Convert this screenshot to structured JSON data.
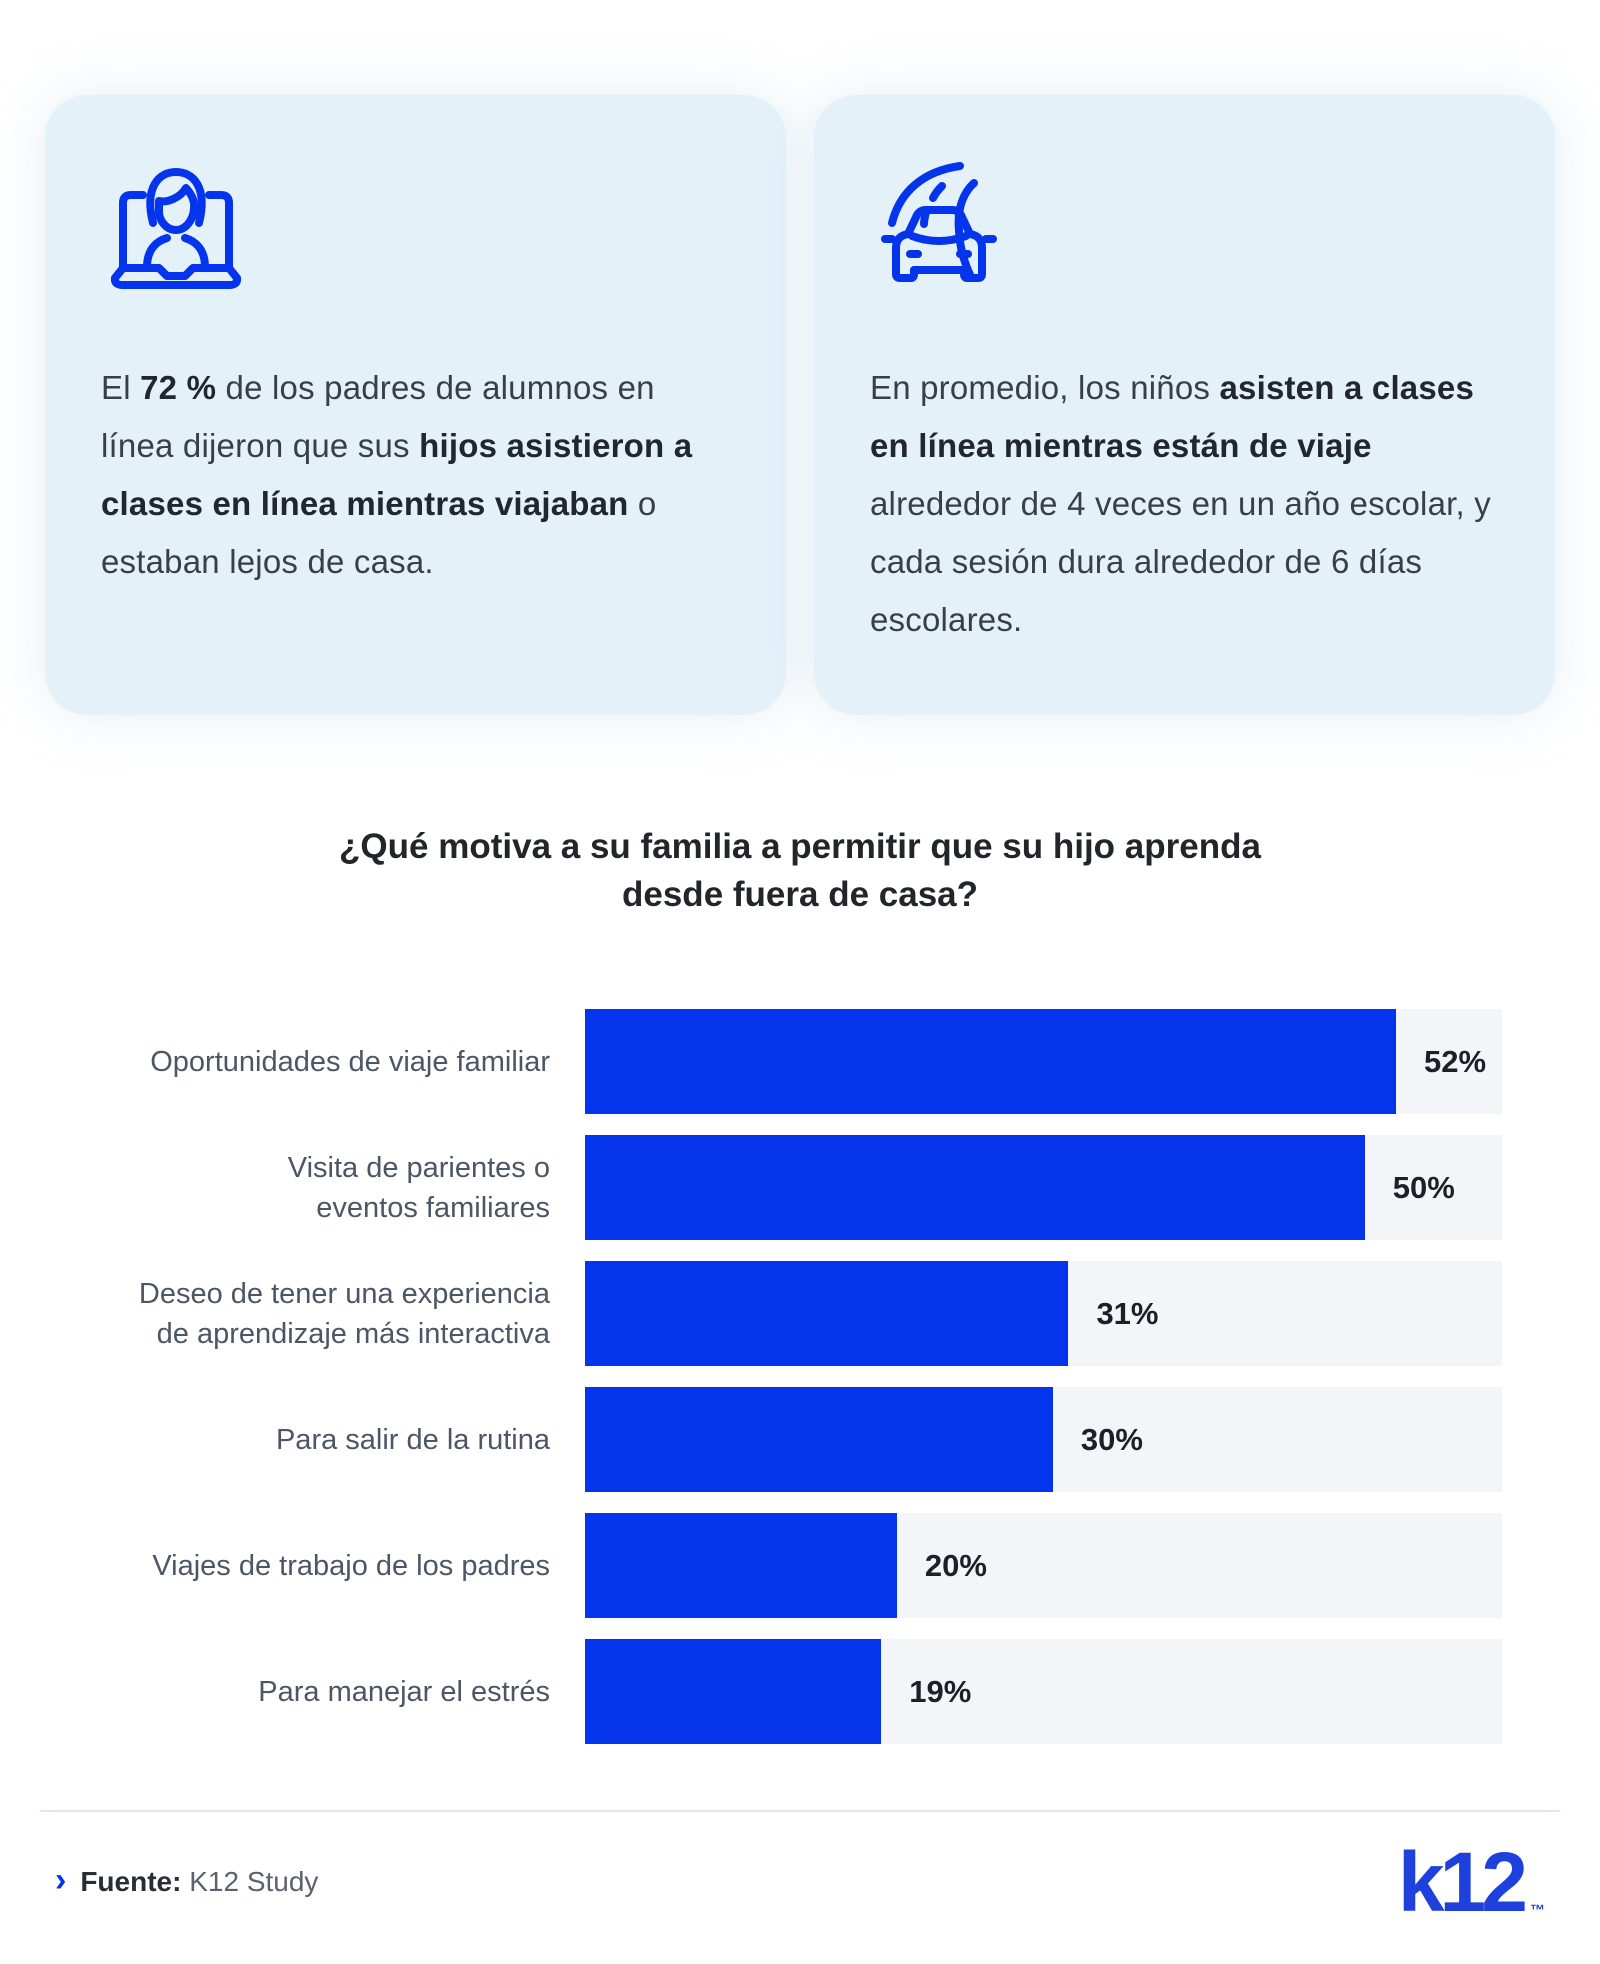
{
  "colors": {
    "accent": "#0435ED",
    "card_background": "#E4F1F9",
    "bar_track": "#F3F5F9",
    "divider": "#E1E7F0"
  },
  "cards": [
    {
      "icon": "woman-on-laptop-icon",
      "segments": [
        {
          "text": "El ",
          "bold": false
        },
        {
          "text": "72 %",
          "bold": true
        },
        {
          "text": " de los padres de alumnos en línea dijeron que sus ",
          "bold": false
        },
        {
          "text": "hijos asistieron a clases en línea mientras viajaban",
          "bold": true
        },
        {
          "text": " o estaban lejos de casa.",
          "bold": false
        }
      ]
    },
    {
      "icon": "car-on-road-icon",
      "segments": [
        {
          "text": "En promedio, los niños ",
          "bold": false
        },
        {
          "text": "asisten a clases en línea mientras están de viaje",
          "bold": true
        },
        {
          "text": " alrededor de 4 veces en un año escolar, y cada sesión dura alrededor de 6 días escolares.",
          "bold": false
        }
      ]
    }
  ],
  "chart_data": {
    "type": "bar",
    "orientation": "horizontal",
    "title": "¿Qué motiva a su familia a permitir que su hijo aprenda desde fuera de casa?",
    "title_lines": [
      "¿Qué motiva a su familia a permitir que su hijo aprenda",
      "desde fuera de casa?"
    ],
    "categories": [
      "Oportunidades de viaje familiar",
      "Visita de parientes o\neventos familiares",
      "Deseo de tener una experiencia\nde aprendizaje más interactiva",
      "Para salir de la rutina",
      "Viajes de trabajo de los padres",
      "Para manejar el estrés"
    ],
    "values": [
      52,
      50,
      31,
      30,
      20,
      19
    ],
    "value_suffix": "%",
    "xlim": [
      0,
      58.8
    ],
    "bar_color": "#0435ED",
    "track_color": "#F3F5F9",
    "grid": false,
    "legend": false,
    "value_label_position": "right-of-bar"
  },
  "footer": {
    "chevron": "›",
    "source_label": "Fuente:",
    "source_value": "K12 Study",
    "logo": "k12",
    "trademark": "™"
  }
}
